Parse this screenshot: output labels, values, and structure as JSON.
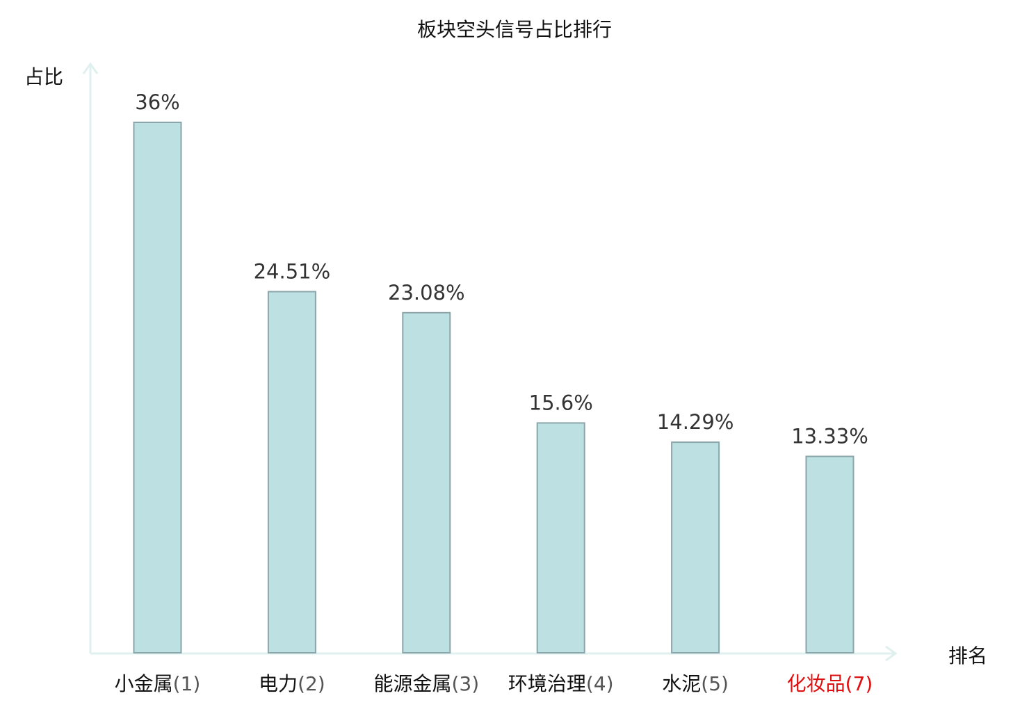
{
  "chart_data": {
    "type": "bar",
    "title": "板块空头信号占比排行",
    "ylabel": "占比",
    "xlabel": "排名",
    "categories": [
      {
        "name": "小金属",
        "rank": "(1)",
        "highlight": false
      },
      {
        "name": "电力",
        "rank": "(2)",
        "highlight": false
      },
      {
        "name": "能源金属",
        "rank": "(3)",
        "highlight": false
      },
      {
        "name": "环境治理",
        "rank": "(4)",
        "highlight": false
      },
      {
        "name": "水泥",
        "rank": "(5)",
        "highlight": false
      },
      {
        "name": "化妆品",
        "rank": "(7)",
        "highlight": true
      }
    ],
    "values": [
      36,
      24.51,
      23.08,
      15.6,
      14.29,
      13.33
    ],
    "value_labels": [
      "36%",
      "24.51%",
      "23.08%",
      "15.6%",
      "14.29%",
      "13.33%"
    ],
    "ylim": [
      0,
      36
    ],
    "grid": false,
    "legend": "none",
    "colors": {
      "bar_fill": "#bde0e3",
      "bar_stroke": "#8aa6aa",
      "axis": "#dff0ee",
      "highlight": "#e01010"
    }
  }
}
